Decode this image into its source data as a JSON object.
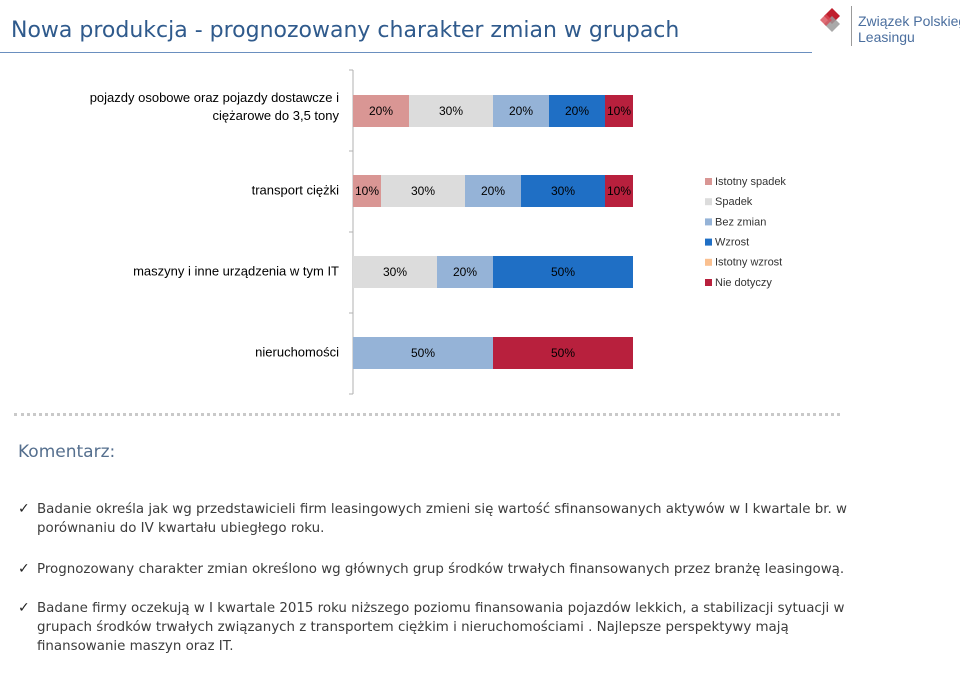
{
  "header": {
    "title": "Nowa produkcja - prognozowany charakter zmian w grupach",
    "logo_line1": "Związek Polskiego",
    "logo_line2": "Leasingu"
  },
  "chart_data": {
    "type": "bar",
    "stacked": true,
    "orientation": "horizontal",
    "categories": [
      "pojazdy osobowe oraz pojazdy dostawcze i ciężarowe do 3,5 tony",
      "transport ciężki",
      "maszyny i inne urządzenia w tym IT",
      "nieruchomości"
    ],
    "series": [
      {
        "name": "Istotny spadek",
        "color": "#D99694",
        "values": [
          20,
          10,
          0,
          0
        ]
      },
      {
        "name": "Spadek",
        "color": "#DCDCDC",
        "values": [
          30,
          30,
          30,
          0
        ]
      },
      {
        "name": "Bez zmian",
        "color": "#95B3D7",
        "values": [
          20,
          20,
          20,
          50
        ]
      },
      {
        "name": "Wzrost",
        "color": "#1F6FC5",
        "values": [
          20,
          30,
          50,
          0
        ]
      },
      {
        "name": "Istotny wzrost",
        "color": "#FAC090",
        "values": [
          0,
          0,
          0,
          0
        ]
      },
      {
        "name": "Nie dotyczy",
        "color": "#B8203D",
        "values": [
          10,
          10,
          0,
          50
        ]
      }
    ],
    "data_labels": [
      [
        "20%",
        "30%",
        "20%",
        "20%",
        "",
        "10%"
      ],
      [
        "10%",
        "30%",
        "20%",
        "30%",
        "",
        "10%"
      ],
      [
        "",
        "30%",
        "20%",
        "50%",
        "",
        ""
      ],
      [
        "",
        "",
        "50%",
        "",
        "",
        "50%"
      ]
    ],
    "xlim": [
      0,
      100
    ],
    "legend_position": "right"
  },
  "comment": {
    "heading": "Komentarz:",
    "bullets": [
      "Badanie określa jak wg przedstawicieli firm leasingowych zmieni się wartość sfinansowanych aktywów w I kwartale br. w porównaniu do IV kwartału ubiegłego roku.",
      "Prognozowany charakter zmian określono wg głównych grup środków trwałych finansowanych przez branżę leasingową.",
      "Badane firmy oczekują w I kwartale 2015 roku niższego poziomu finansowania pojazdów lekkich, a stabilizacji sytuacji w grupach środków trwałych związanych z transportem ciężkim i nieruchomościami . Najlepsze perspektywy mają finansowanie maszyn oraz IT."
    ]
  }
}
